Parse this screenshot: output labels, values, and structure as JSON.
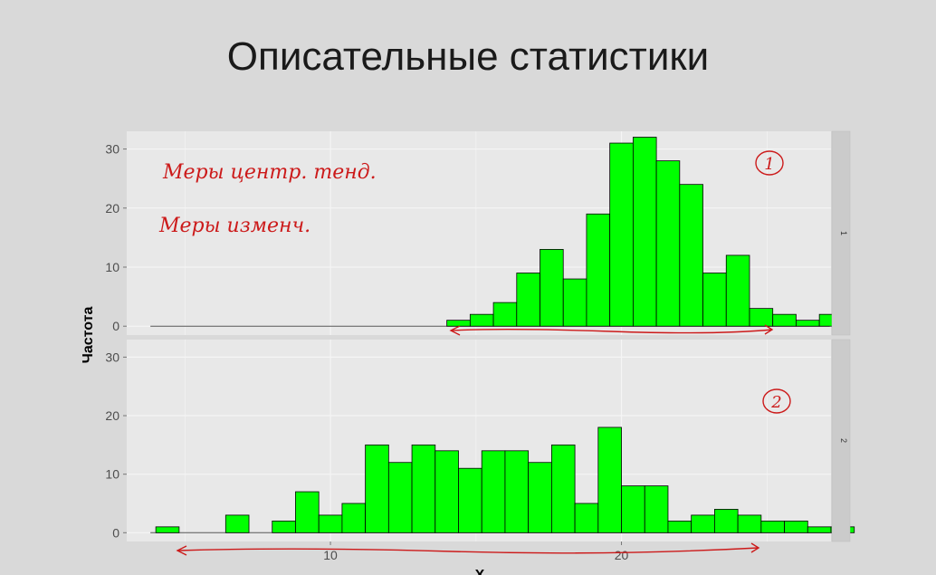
{
  "slide": {
    "title": "Описательные статистики"
  },
  "annotations": {
    "note1": "Меры центр. тенд.",
    "note2": "Меры изменч.",
    "circle1": "1",
    "circle2": "2",
    "color": "#cc1a1a"
  },
  "chart_data": {
    "type": "bar",
    "subtype": "faceted-histogram",
    "xlabel": "X",
    "ylabel": "Частота",
    "xlim": [
      3,
      27.2
    ],
    "ylim": [
      -1.5,
      33
    ],
    "x_ticks": [
      10,
      20
    ],
    "y_ticks": [
      0,
      10,
      20,
      30
    ],
    "bin_width": 0.8,
    "bar_color": "#00ff00",
    "bar_outline": "#000000",
    "grid": true,
    "panels": [
      {
        "strip": "1",
        "x_start": 14.0,
        "values": [
          1,
          2,
          4,
          9,
          13,
          8,
          19,
          31,
          32,
          28,
          24,
          9,
          12,
          3,
          2,
          1,
          2
        ]
      },
      {
        "strip": "2",
        "x_start": 4.0,
        "values": [
          1,
          0,
          0,
          3,
          0,
          2,
          7,
          3,
          5,
          15,
          12,
          15,
          14,
          11,
          14,
          14,
          12,
          15,
          5,
          18,
          8,
          8,
          2,
          3,
          4,
          3,
          2,
          2,
          1,
          1
        ]
      }
    ]
  }
}
